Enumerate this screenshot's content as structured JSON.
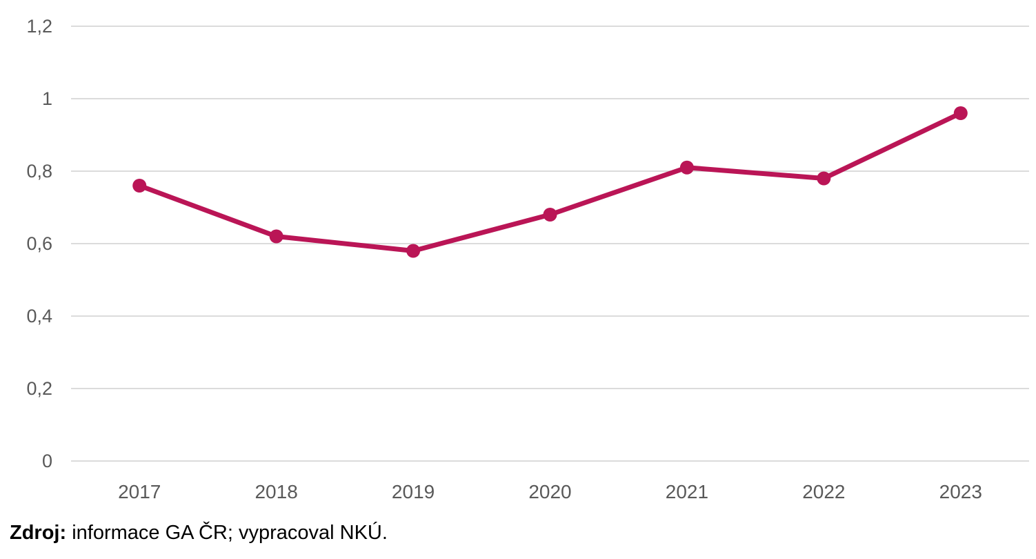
{
  "chart_data": {
    "type": "line",
    "title": "",
    "xlabel": "",
    "ylabel": "",
    "categories": [
      "2017",
      "2018",
      "2019",
      "2020",
      "2021",
      "2022",
      "2023"
    ],
    "series": [
      {
        "name": "series-1",
        "values": [
          0.76,
          0.62,
          0.58,
          0.68,
          0.81,
          0.78,
          0.96
        ]
      }
    ],
    "ylim": [
      0,
      1.2
    ],
    "ytick_values": [
      0,
      0.2,
      0.4,
      0.6,
      0.8,
      1,
      1.2
    ],
    "ytick_labels": [
      "0",
      "0,2",
      "0,4",
      "0,6",
      "0,8",
      "1",
      "1,2"
    ],
    "grid": "horizontal-only",
    "legend": "none",
    "marker": "circle",
    "colors": {
      "line": "#BA1556",
      "marker": "#BA1556",
      "gridline": "#DBDBDB",
      "tick_label": "#595959",
      "background": "#FFFFFF"
    }
  },
  "source": {
    "label_bold": "Zdroj:",
    "text": " informace GA ČR; vypracoval NKÚ."
  }
}
